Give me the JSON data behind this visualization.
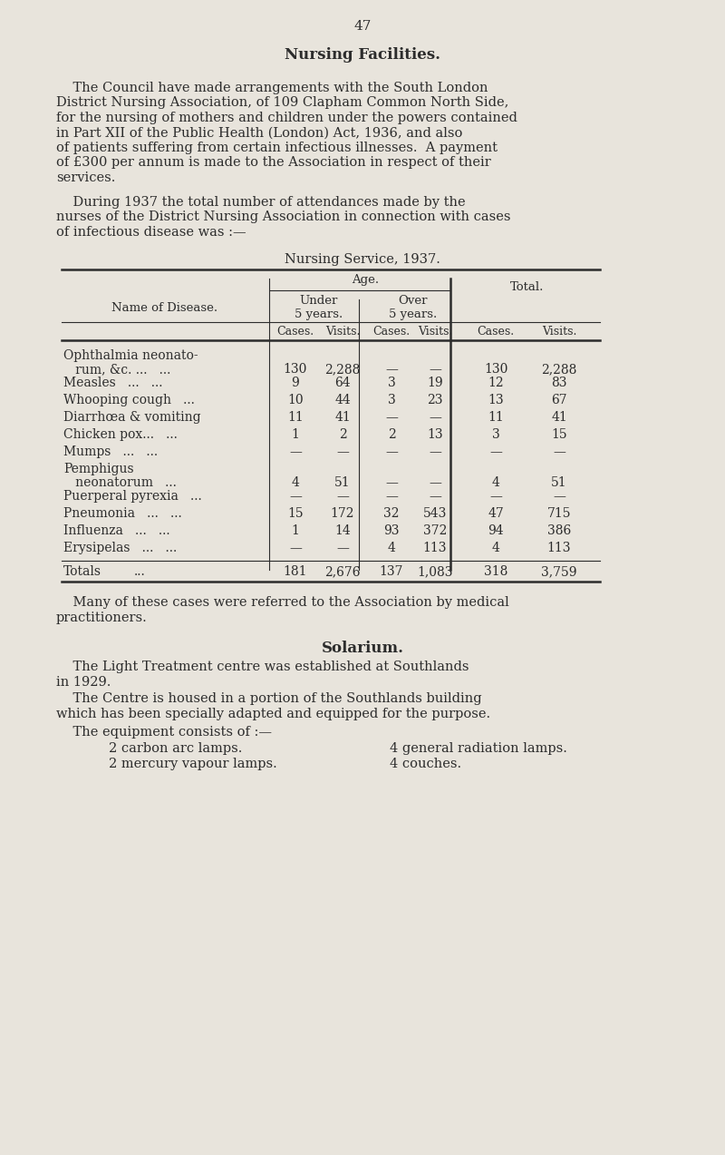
{
  "page_number": "47",
  "bg_color": "#e8e4dc",
  "text_color": "#2c2c2c",
  "title": "Nursing Facilities.",
  "para1_lines": [
    "    The Council have made arrangements with the South London",
    "District Nursing Association, of 109 Clapham Common North Side,",
    "for the nursing of mothers and children under the powers contained",
    "in Part XII of the Public Health (London) Act, 1936, and also",
    "of patients suffering from certain infectious illnesses.  A payment",
    "of £300 per annum is made to the Association in respect of their",
    "services."
  ],
  "para2_lines": [
    "    During 1937 the total number of attendances made by the",
    "nurses of the District Nursing Association in connection with cases",
    "of infectious disease was :—"
  ],
  "table_title": "Nursing Service, 1937.",
  "diseases": [
    {
      "name1": "Ophthalmia neonato-",
      "name2": "   rum, &c. ...   ...",
      "u5c": "130",
      "u5v": "2,288",
      "o5c": "—",
      "o5v": "—",
      "tc": "130",
      "tv": "2,288",
      "two_line": true
    },
    {
      "name1": "Measles   ...   ...",
      "name2": "",
      "u5c": "9",
      "u5v": "64",
      "o5c": "3",
      "o5v": "19",
      "tc": "12",
      "tv": "83",
      "two_line": false
    },
    {
      "name1": "Whooping cough   ...",
      "name2": "",
      "u5c": "10",
      "u5v": "44",
      "o5c": "3",
      "o5v": "23",
      "tc": "13",
      "tv": "67",
      "two_line": false
    },
    {
      "name1": "Diarrhœa & vomiting",
      "name2": "",
      "u5c": "11",
      "u5v": "41",
      "o5c": "—",
      "o5v": "—",
      "tc": "11",
      "tv": "41",
      "two_line": false
    },
    {
      "name1": "Chicken pox...   ...",
      "name2": "",
      "u5c": "1",
      "u5v": "2",
      "o5c": "2",
      "o5v": "13",
      "tc": "3",
      "tv": "15",
      "two_line": false
    },
    {
      "name1": "Mumps   ...   ...",
      "name2": "",
      "u5c": "—",
      "u5v": "—",
      "o5c": "—",
      "o5v": "—",
      "tc": "—",
      "tv": "—",
      "two_line": false
    },
    {
      "name1": "Pemphigus",
      "name2": "   neonatorum   ...",
      "u5c": "4",
      "u5v": "51",
      "o5c": "—",
      "o5v": "—",
      "tc": "4",
      "tv": "51",
      "two_line": true
    },
    {
      "name1": "Puerperal pyrexia   ...",
      "name2": "",
      "u5c": "—",
      "u5v": "—",
      "o5c": "—",
      "o5v": "—",
      "tc": "—",
      "tv": "—",
      "two_line": false
    },
    {
      "name1": "Pneumonia   ...   ...",
      "name2": "",
      "u5c": "15",
      "u5v": "172",
      "o5c": "32",
      "o5v": "543",
      "tc": "47",
      "tv": "715",
      "two_line": false
    },
    {
      "name1": "Influenza   ...   ...",
      "name2": "",
      "u5c": "1",
      "u5v": "14",
      "o5c": "93",
      "o5v": "372",
      "tc": "94",
      "tv": "386",
      "two_line": false
    },
    {
      "name1": "Erysipelas   ...   ...",
      "name2": "",
      "u5c": "—",
      "u5v": "—",
      "o5c": "4",
      "o5v": "113",
      "tc": "4",
      "tv": "113",
      "two_line": false
    }
  ],
  "totals": {
    "u5c": "181",
    "u5v": "2,676",
    "o5c": "137",
    "o5v": "1,083",
    "tc": "318",
    "tv": "3,759"
  },
  "para3_lines": [
    "    Many of these cases were referred to the Association by medical",
    "practitioners."
  ],
  "section2_title": "Solarium.",
  "para4_lines": [
    "    The Light Treatment centre was established at Southlands",
    "in 1929."
  ],
  "para5_lines": [
    "    The Centre is housed in a portion of the Southlands building",
    "which has been specially adapted and equipped for the purpose."
  ],
  "para6": "    The equipment consists of :—",
  "equip_col1": [
    "2 carbon arc lamps.",
    "2 mercury vapour lamps."
  ],
  "equip_col2": [
    "4 general radiation lamps.",
    "4 couches."
  ]
}
